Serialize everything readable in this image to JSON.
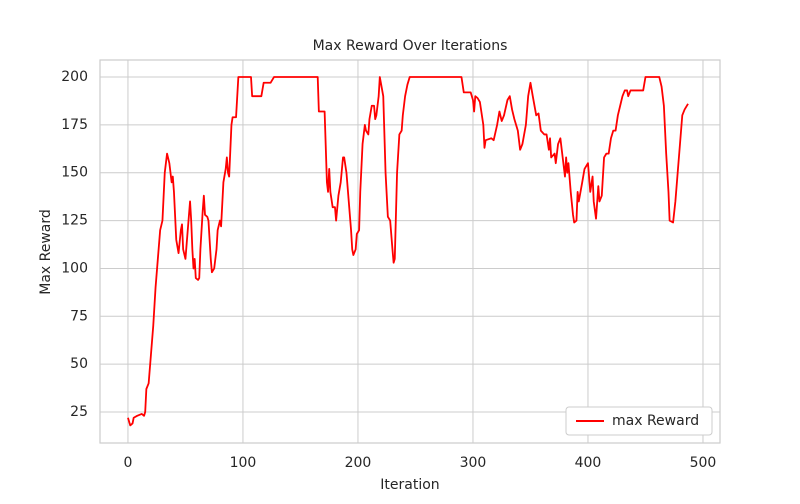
{
  "chart_data": {
    "type": "line",
    "title": "Max Reward Over Iterations",
    "xlabel": "Iteration",
    "ylabel": "Max Reward",
    "x": [
      0,
      2,
      4,
      5,
      8,
      12,
      14,
      15,
      16,
      18,
      20,
      22,
      24,
      26,
      28,
      30,
      32,
      34,
      36,
      38,
      39,
      40,
      42,
      44,
      46,
      47,
      48,
      50,
      52,
      54,
      55,
      56,
      57,
      58,
      59,
      61,
      62,
      63,
      65,
      66,
      67,
      69,
      70,
      72,
      73,
      75,
      77,
      78,
      80,
      81,
      83,
      85,
      86,
      87,
      88,
      90,
      91,
      94,
      96,
      100,
      107,
      108,
      116,
      118,
      124,
      127,
      165,
      166,
      171,
      173,
      174,
      175,
      176,
      178,
      180,
      181,
      183,
      185,
      187,
      188,
      190,
      192,
      194,
      195,
      196,
      198,
      199,
      201,
      202,
      204,
      206,
      207,
      209,
      210,
      212,
      214,
      215,
      216,
      218,
      219,
      222,
      224,
      226,
      228,
      230,
      231,
      232,
      234,
      236,
      238,
      239,
      241,
      243,
      245,
      250,
      290,
      292,
      298,
      300,
      301,
      302,
      304,
      306,
      309,
      310,
      311,
      316,
      318,
      321,
      323,
      325,
      327,
      330,
      332,
      334,
      336,
      339,
      341,
      343,
      346,
      348,
      350,
      352,
      355,
      357,
      359,
      362,
      364,
      366,
      367,
      368,
      371,
      372,
      374,
      376,
      378,
      380,
      381,
      382,
      383,
      385,
      387,
      388,
      390,
      391,
      392,
      395,
      397,
      400,
      402,
      404,
      405,
      407,
      409,
      410,
      412,
      414,
      416,
      418,
      420,
      422,
      424,
      426,
      428,
      430,
      432,
      434,
      435,
      437,
      448,
      450,
      462,
      464,
      466,
      468,
      470,
      471,
      474,
      476,
      478,
      480,
      482,
      484,
      487
    ],
    "series": [
      {
        "name": "max Reward",
        "color": "#ff0000",
        "values": [
          22,
          18,
          19,
          22,
          23,
          24,
          23,
          25,
          37,
          40,
          55,
          70,
          90,
          105,
          120,
          125,
          150,
          160,
          155,
          145,
          148,
          140,
          115,
          108,
          120,
          123,
          110,
          105,
          120,
          135,
          125,
          110,
          100,
          105,
          95,
          94,
          95,
          110,
          130,
          138,
          128,
          127,
          125,
          105,
          98,
          100,
          110,
          120,
          125,
          122,
          145,
          152,
          158,
          150,
          148,
          175,
          179,
          179,
          200,
          200,
          200,
          190,
          190,
          197,
          197,
          200,
          200,
          182,
          182,
          145,
          140,
          152,
          140,
          132,
          132,
          125,
          138,
          145,
          158,
          158,
          150,
          135,
          120,
          110,
          107,
          110,
          118,
          120,
          140,
          165,
          175,
          172,
          170,
          178,
          185,
          185,
          178,
          180,
          190,
          200,
          190,
          150,
          127,
          125,
          110,
          103,
          105,
          150,
          170,
          172,
          180,
          190,
          196,
          200,
          200,
          200,
          192,
          192,
          188,
          182,
          190,
          189,
          187,
          175,
          163,
          167,
          168,
          167,
          175,
          182,
          177,
          180,
          188,
          190,
          183,
          178,
          172,
          162,
          165,
          175,
          190,
          197,
          190,
          180,
          181,
          172,
          170,
          170,
          162,
          168,
          158,
          160,
          155,
          165,
          168,
          158,
          148,
          158,
          150,
          155,
          140,
          128,
          124,
          125,
          140,
          135,
          145,
          152,
          155,
          140,
          148,
          135,
          126,
          143,
          135,
          138,
          158,
          160,
          160,
          168,
          172,
          172,
          180,
          185,
          190,
          193,
          193,
          190,
          193,
          193,
          200,
          200,
          195,
          185,
          160,
          140,
          125,
          124,
          135,
          150,
          165,
          180,
          183,
          186
        ]
      }
    ],
    "xlim": [
      -24.3,
      514.8
    ],
    "ylim": [
      8.8,
      208.9
    ],
    "xticks": [
      0,
      100,
      200,
      300,
      400,
      500
    ],
    "yticks": [
      25,
      50,
      75,
      100,
      125,
      150,
      175,
      200
    ],
    "grid": true,
    "legend": "lower right"
  }
}
